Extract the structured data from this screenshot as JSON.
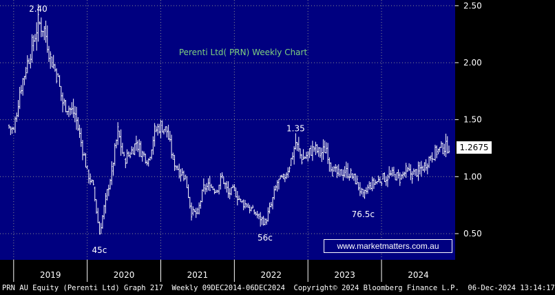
{
  "chart_data": {
    "type": "ohlc",
    "title": "Perenti Ltd( PRN) Weekly Chart",
    "y_axis": {
      "ticks": [
        2.5,
        2.0,
        1.5,
        1.0,
        0.5
      ],
      "tick_labels": [
        "2.50",
        "2.00",
        "1.50",
        "1.00",
        "0.50"
      ],
      "ylim": [
        0.27,
        2.55
      ],
      "position": "right"
    },
    "x_axis": {
      "labels": [
        "2019",
        "2020",
        "2021",
        "2022",
        "2023",
        "2024"
      ],
      "range": [
        "2018-11",
        "2024-12"
      ]
    },
    "grid": true,
    "last_price": "1.2675",
    "annotations": [
      {
        "label": "2.40",
        "date": "2019-05",
        "value": 2.4
      },
      {
        "label": "45c",
        "date": "2020-03",
        "value": 0.45
      },
      {
        "label": "1.35",
        "date": "2022-11",
        "value": 1.35
      },
      {
        "label": "56c",
        "date": "2022-06",
        "value": 0.56
      },
      {
        "label": "76.5c",
        "date": "2023-10",
        "value": 0.765
      }
    ],
    "series_points": [
      [
        "2018-12",
        1.45
      ],
      [
        "2019-01",
        1.4
      ],
      [
        "2019-02",
        1.75
      ],
      [
        "2019-03",
        1.95
      ],
      [
        "2019-04",
        2.15
      ],
      [
        "2019-05",
        2.35
      ],
      [
        "2019-06",
        2.3
      ],
      [
        "2019-07",
        2.05
      ],
      [
        "2019-08",
        1.9
      ],
      [
        "2019-09",
        1.65
      ],
      [
        "2019-10",
        1.6
      ],
      [
        "2019-11",
        1.55
      ],
      [
        "2019-12",
        1.3
      ],
      [
        "2020-01",
        1.05
      ],
      [
        "2020-02",
        0.9
      ],
      [
        "2020-03",
        0.5
      ],
      [
        "2020-04",
        0.8
      ],
      [
        "2020-05",
        1.05
      ],
      [
        "2020-06",
        1.4
      ],
      [
        "2020-07",
        1.15
      ],
      [
        "2020-08",
        1.2
      ],
      [
        "2020-09",
        1.3
      ],
      [
        "2020-10",
        1.2
      ],
      [
        "2020-11",
        1.15
      ],
      [
        "2020-12",
        1.4
      ],
      [
        "2021-01",
        1.45
      ],
      [
        "2021-02",
        1.4
      ],
      [
        "2021-03",
        1.15
      ],
      [
        "2021-04",
        1.05
      ],
      [
        "2021-05",
        1.0
      ],
      [
        "2021-06",
        0.68
      ],
      [
        "2021-07",
        0.68
      ],
      [
        "2021-08",
        0.9
      ],
      [
        "2021-09",
        0.92
      ],
      [
        "2021-10",
        0.88
      ],
      [
        "2021-11",
        1.0
      ],
      [
        "2021-12",
        0.85
      ],
      [
        "2022-01",
        0.88
      ],
      [
        "2022-02",
        0.78
      ],
      [
        "2022-03",
        0.75
      ],
      [
        "2022-04",
        0.7
      ],
      [
        "2022-05",
        0.65
      ],
      [
        "2022-06",
        0.6
      ],
      [
        "2022-07",
        0.75
      ],
      [
        "2022-08",
        0.95
      ],
      [
        "2022-09",
        0.98
      ],
      [
        "2022-10",
        1.1
      ],
      [
        "2022-11",
        1.3
      ],
      [
        "2022-12",
        1.15
      ],
      [
        "2023-01",
        1.2
      ],
      [
        "2023-02",
        1.25
      ],
      [
        "2023-03",
        1.2
      ],
      [
        "2023-04",
        1.25
      ],
      [
        "2023-05",
        1.05
      ],
      [
        "2023-06",
        1.02
      ],
      [
        "2023-07",
        1.05
      ],
      [
        "2023-08",
        1.02
      ],
      [
        "2023-09",
        0.95
      ],
      [
        "2023-10",
        0.82
      ],
      [
        "2023-11",
        0.92
      ],
      [
        "2023-12",
        0.95
      ],
      [
        "2024-01",
        0.98
      ],
      [
        "2024-02",
        1.0
      ],
      [
        "2024-03",
        1.02
      ],
      [
        "2024-04",
        0.98
      ],
      [
        "2024-05",
        1.05
      ],
      [
        "2024-06",
        1.02
      ],
      [
        "2024-07",
        1.05
      ],
      [
        "2024-08",
        1.1
      ],
      [
        "2024-09",
        1.18
      ],
      [
        "2024-10",
        1.22
      ],
      [
        "2024-11",
        1.25
      ],
      [
        "2024-12",
        1.2675
      ]
    ]
  },
  "url_box": "www.marketmatters.com.au",
  "footer": "PRN AU Equity (Perenti Ltd) Graph 217  Weekly 09DEC2014-06DEC2024  Copyright© 2024 Bloomberg Finance L.P.  06-Dec-2024 13:14:17",
  "colors": {
    "background": "#000080",
    "grid": "#8c8c8c",
    "bars": "#ffffff",
    "title": "#7fd07f",
    "axis_bg": "#000000"
  }
}
